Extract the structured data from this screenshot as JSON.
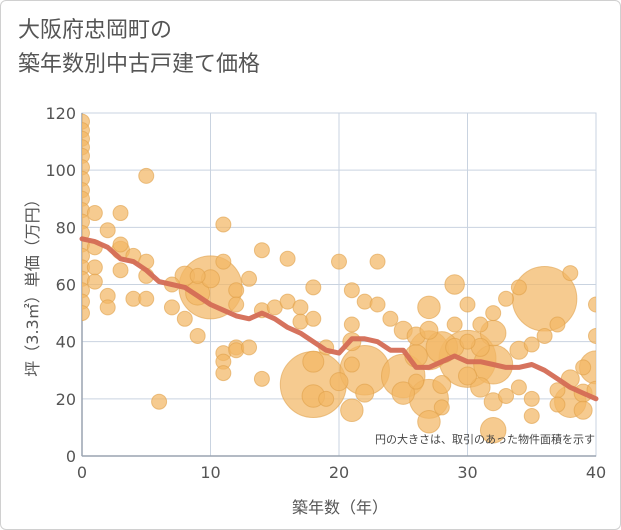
{
  "chart_data": {
    "type": "scatter",
    "title_lines": [
      "大阪府忠岡町の",
      "築年数別中古戸建て価格"
    ],
    "xlabel": "築年数（年）",
    "ylabel": "坪（3.3㎡）単価（万円）",
    "xlim": [
      0,
      40
    ],
    "ylim": [
      0,
      120
    ],
    "xticks": [
      0,
      10,
      20,
      30,
      40
    ],
    "yticks": [
      0,
      20,
      40,
      60,
      80,
      100,
      120
    ],
    "note": "円の大きさは、取引のあった物件面積を示す",
    "colors": {
      "bubble": "#f2b765",
      "bubble_edge": "#e0a04a",
      "trend": "#d46b55",
      "grid": "#c9d3e0",
      "axis": "#9aa4b0"
    },
    "points": [
      {
        "x": 0,
        "y": 117,
        "s": 1
      },
      {
        "x": 0,
        "y": 114,
        "s": 1
      },
      {
        "x": 0,
        "y": 111,
        "s": 1
      },
      {
        "x": 0,
        "y": 108,
        "s": 1
      },
      {
        "x": 0,
        "y": 105,
        "s": 1
      },
      {
        "x": 0,
        "y": 101,
        "s": 1
      },
      {
        "x": 0,
        "y": 97,
        "s": 1
      },
      {
        "x": 0,
        "y": 93,
        "s": 1
      },
      {
        "x": 0,
        "y": 90,
        "s": 1
      },
      {
        "x": 0,
        "y": 86,
        "s": 1
      },
      {
        "x": 0,
        "y": 82,
        "s": 1
      },
      {
        "x": 0,
        "y": 78,
        "s": 1
      },
      {
        "x": 0,
        "y": 74,
        "s": 1
      },
      {
        "x": 0,
        "y": 70,
        "s": 1
      },
      {
        "x": 0,
        "y": 66,
        "s": 1
      },
      {
        "x": 0,
        "y": 62,
        "s": 1
      },
      {
        "x": 0,
        "y": 58,
        "s": 1
      },
      {
        "x": 0,
        "y": 54,
        "s": 1
      },
      {
        "x": 0,
        "y": 50,
        "s": 1
      },
      {
        "x": 1,
        "y": 85,
        "s": 1
      },
      {
        "x": 1,
        "y": 73,
        "s": 1
      },
      {
        "x": 1,
        "y": 66,
        "s": 1
      },
      {
        "x": 1,
        "y": 61,
        "s": 1
      },
      {
        "x": 2,
        "y": 79,
        "s": 1
      },
      {
        "x": 2,
        "y": 56,
        "s": 1
      },
      {
        "x": 2,
        "y": 52,
        "s": 1
      },
      {
        "x": 3,
        "y": 85,
        "s": 1
      },
      {
        "x": 3,
        "y": 74,
        "s": 1
      },
      {
        "x": 3,
        "y": 72,
        "s": 1.2
      },
      {
        "x": 3,
        "y": 65,
        "s": 1
      },
      {
        "x": 4,
        "y": 70,
        "s": 1
      },
      {
        "x": 4,
        "y": 55,
        "s": 1
      },
      {
        "x": 5,
        "y": 98,
        "s": 1
      },
      {
        "x": 5,
        "y": 68,
        "s": 1
      },
      {
        "x": 5,
        "y": 63,
        "s": 1
      },
      {
        "x": 5,
        "y": 55,
        "s": 1
      },
      {
        "x": 6,
        "y": 19,
        "s": 1
      },
      {
        "x": 7,
        "y": 60,
        "s": 1
      },
      {
        "x": 7,
        "y": 52,
        "s": 1
      },
      {
        "x": 8,
        "y": 63,
        "s": 1.3
      },
      {
        "x": 8,
        "y": 48,
        "s": 1
      },
      {
        "x": 9,
        "y": 63,
        "s": 1
      },
      {
        "x": 9,
        "y": 57,
        "s": 1.6
      },
      {
        "x": 9,
        "y": 42,
        "s": 1
      },
      {
        "x": 10,
        "y": 59,
        "s": 4.2
      },
      {
        "x": 10,
        "y": 62,
        "s": 1.2
      },
      {
        "x": 11,
        "y": 81,
        "s": 1
      },
      {
        "x": 11,
        "y": 68,
        "s": 1
      },
      {
        "x": 11,
        "y": 36,
        "s": 1
      },
      {
        "x": 11,
        "y": 33,
        "s": 1
      },
      {
        "x": 11,
        "y": 29,
        "s": 1
      },
      {
        "x": 12,
        "y": 58,
        "s": 1
      },
      {
        "x": 12,
        "y": 53,
        "s": 1
      },
      {
        "x": 12,
        "y": 38,
        "s": 1
      },
      {
        "x": 12,
        "y": 37,
        "s": 1
      },
      {
        "x": 13,
        "y": 62,
        "s": 1
      },
      {
        "x": 13,
        "y": 38,
        "s": 1
      },
      {
        "x": 14,
        "y": 72,
        "s": 1
      },
      {
        "x": 14,
        "y": 51,
        "s": 1
      },
      {
        "x": 14,
        "y": 27,
        "s": 1
      },
      {
        "x": 15,
        "y": 52,
        "s": 1
      },
      {
        "x": 16,
        "y": 69,
        "s": 1
      },
      {
        "x": 16,
        "y": 54,
        "s": 1
      },
      {
        "x": 17,
        "y": 52,
        "s": 1
      },
      {
        "x": 17,
        "y": 47,
        "s": 1
      },
      {
        "x": 18,
        "y": 59,
        "s": 1
      },
      {
        "x": 18,
        "y": 48,
        "s": 1
      },
      {
        "x": 18,
        "y": 33,
        "s": 1.4
      },
      {
        "x": 18,
        "y": 25,
        "s": 4.4
      },
      {
        "x": 18,
        "y": 21,
        "s": 1.5
      },
      {
        "x": 19,
        "y": 38,
        "s": 1
      },
      {
        "x": 19,
        "y": 20,
        "s": 1
      },
      {
        "x": 20,
        "y": 68,
        "s": 1
      },
      {
        "x": 20,
        "y": 26,
        "s": 1.2
      },
      {
        "x": 21,
        "y": 58,
        "s": 1
      },
      {
        "x": 21,
        "y": 46,
        "s": 1
      },
      {
        "x": 21,
        "y": 40,
        "s": 1.2
      },
      {
        "x": 21,
        "y": 32,
        "s": 1
      },
      {
        "x": 21,
        "y": 16,
        "s": 1.5
      },
      {
        "x": 22,
        "y": 54,
        "s": 1
      },
      {
        "x": 22,
        "y": 30,
        "s": 3.3
      },
      {
        "x": 22,
        "y": 22,
        "s": 1.2
      },
      {
        "x": 23,
        "y": 68,
        "s": 1
      },
      {
        "x": 23,
        "y": 53,
        "s": 1
      },
      {
        "x": 24,
        "y": 48,
        "s": 1
      },
      {
        "x": 25,
        "y": 44,
        "s": 1.2
      },
      {
        "x": 25,
        "y": 28,
        "s": 2.9
      },
      {
        "x": 25,
        "y": 22,
        "s": 1.5
      },
      {
        "x": 26,
        "y": 42,
        "s": 1.2
      },
      {
        "x": 26,
        "y": 35,
        "s": 1.5
      },
      {
        "x": 26,
        "y": 26,
        "s": 1
      },
      {
        "x": 27,
        "y": 52,
        "s": 1.5
      },
      {
        "x": 27,
        "y": 44,
        "s": 1.2
      },
      {
        "x": 27,
        "y": 37,
        "s": 2.6
      },
      {
        "x": 27,
        "y": 20,
        "s": 2.6
      },
      {
        "x": 27,
        "y": 12,
        "s": 1.5
      },
      {
        "x": 28,
        "y": 38,
        "s": 2.1
      },
      {
        "x": 28,
        "y": 25,
        "s": 1.2
      },
      {
        "x": 28,
        "y": 17,
        "s": 1
      },
      {
        "x": 29,
        "y": 60,
        "s": 1.3
      },
      {
        "x": 29,
        "y": 46,
        "s": 1
      },
      {
        "x": 29,
        "y": 38,
        "s": 1.2
      },
      {
        "x": 30,
        "y": 53,
        "s": 1
      },
      {
        "x": 30,
        "y": 40,
        "s": 1
      },
      {
        "x": 30,
        "y": 34,
        "s": 3.8
      },
      {
        "x": 30,
        "y": 28,
        "s": 1.2
      },
      {
        "x": 31,
        "y": 46,
        "s": 1
      },
      {
        "x": 31,
        "y": 38,
        "s": 1.2
      },
      {
        "x": 31,
        "y": 24,
        "s": 1.3
      },
      {
        "x": 32,
        "y": 50,
        "s": 1
      },
      {
        "x": 32,
        "y": 43,
        "s": 1.7
      },
      {
        "x": 32,
        "y": 32,
        "s": 2.6
      },
      {
        "x": 32,
        "y": 19,
        "s": 1.2
      },
      {
        "x": 32,
        "y": 9,
        "s": 1.7
      },
      {
        "x": 33,
        "y": 55,
        "s": 1
      },
      {
        "x": 33,
        "y": 21,
        "s": 1
      },
      {
        "x": 34,
        "y": 59,
        "s": 1
      },
      {
        "x": 34,
        "y": 37,
        "s": 1.2
      },
      {
        "x": 34,
        "y": 24,
        "s": 1
      },
      {
        "x": 35,
        "y": 39,
        "s": 1
      },
      {
        "x": 35,
        "y": 20,
        "s": 1
      },
      {
        "x": 35,
        "y": 14,
        "s": 1
      },
      {
        "x": 36,
        "y": 55,
        "s": 4.3
      },
      {
        "x": 36,
        "y": 42,
        "s": 1
      },
      {
        "x": 37,
        "y": 46,
        "s": 1
      },
      {
        "x": 37,
        "y": 23,
        "s": 1
      },
      {
        "x": 37,
        "y": 18,
        "s": 1
      },
      {
        "x": 38,
        "y": 64,
        "s": 1
      },
      {
        "x": 38,
        "y": 27,
        "s": 1.2
      },
      {
        "x": 38,
        "y": 19,
        "s": 2.1
      },
      {
        "x": 39,
        "y": 31,
        "s": 1
      },
      {
        "x": 39,
        "y": 22,
        "s": 1.2
      },
      {
        "x": 39,
        "y": 16,
        "s": 1.2
      },
      {
        "x": 40,
        "y": 53,
        "s": 1
      },
      {
        "x": 40,
        "y": 42,
        "s": 1
      },
      {
        "x": 40,
        "y": 31,
        "s": 2.2
      },
      {
        "x": 40,
        "y": 23,
        "s": 1.2
      }
    ],
    "trend": {
      "x": [
        0,
        1,
        2,
        3,
        4,
        5,
        6,
        7,
        8,
        9,
        10,
        11,
        12,
        13,
        14,
        15,
        16,
        17,
        18,
        19,
        20,
        21,
        22,
        23,
        24,
        25,
        26,
        27,
        28,
        29,
        30,
        31,
        32,
        33,
        34,
        35,
        36,
        37,
        38,
        39,
        40
      ],
      "y": [
        76,
        75,
        73,
        69,
        68,
        65,
        61,
        60,
        59,
        56,
        53,
        51,
        49,
        48,
        50,
        48,
        45,
        43,
        40,
        37,
        36,
        41,
        41,
        40,
        37,
        37,
        31,
        31,
        33,
        35,
        33,
        33,
        32,
        31,
        31,
        32,
        30,
        27,
        24,
        22,
        20
      ]
    }
  }
}
